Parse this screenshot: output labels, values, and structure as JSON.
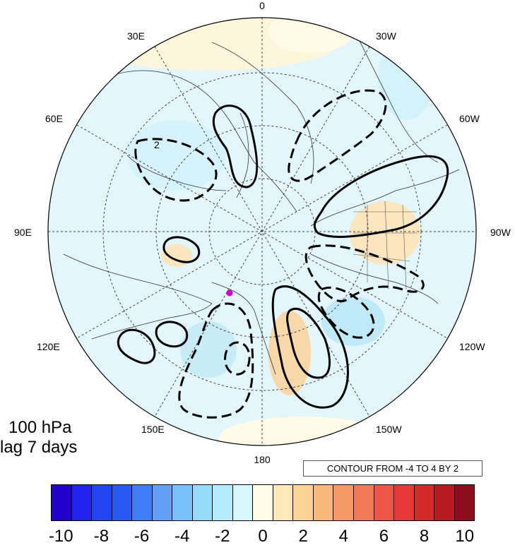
{
  "map": {
    "longitude_labels": [
      "0",
      "30W",
      "60W",
      "90W",
      "120W",
      "150W",
      "180",
      "150E",
      "120E",
      "90E",
      "60E",
      "30E"
    ],
    "marker_color": "#cc00cc"
  },
  "info": {
    "level": "100 hPa",
    "lag": "lag 7 days",
    "contour_note": "CONTOUR FROM -4 TO 4 BY 2",
    "contour_label": "2"
  },
  "colorbar": {
    "colors": [
      "#2200cc",
      "#2222ee",
      "#2244f0",
      "#2a5af5",
      "#3f7cf5",
      "#5fa0f5",
      "#7ac0f8",
      "#96daf9",
      "#b4ecfb",
      "#d6f7fc",
      "#fffde8",
      "#fde9b8",
      "#fbd394",
      "#f8b87a",
      "#f59a66",
      "#f27a55",
      "#ef5544",
      "#e63838",
      "#d32a2a",
      "#b81a22",
      "#8e0d1c"
    ],
    "tick_labels": [
      "-10",
      "-8",
      "-6",
      "-4",
      "-2",
      "0",
      "2",
      "4",
      "6",
      "8",
      "10"
    ]
  }
}
